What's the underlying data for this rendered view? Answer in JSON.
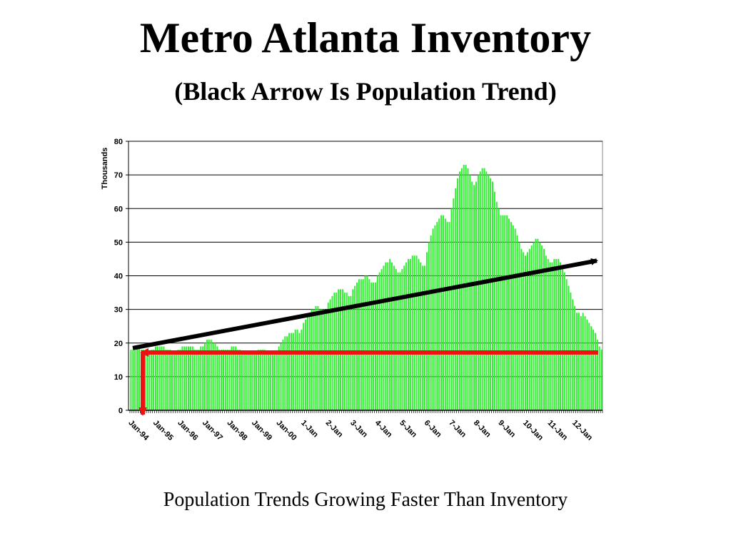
{
  "slide": {
    "title": "Metro Atlanta Inventory",
    "subtitle": "(Black Arrow Is Population Trend)",
    "caption": "Population Trends Growing Faster Than Inventory"
  },
  "colors": {
    "bars": "#33ee33",
    "population_arrow": "#000000",
    "inventory_arrow": "#ee1111",
    "plot_background": "#ffffff",
    "gridline": "#000000"
  },
  "chart_data": {
    "type": "bar",
    "title": "",
    "xlabel": "",
    "ylabel": "Thousands",
    "ylim": [
      0,
      80
    ],
    "yticks": [
      0,
      10,
      20,
      30,
      40,
      50,
      60,
      70,
      80
    ],
    "grid": true,
    "legend": "none",
    "x_tick_labels": [
      "Jan-94",
      "Jan-95",
      "Jan-96",
      "Jan-97",
      "Jan-98",
      "Jan-99",
      "Jan-00",
      "1-Jan",
      "2-Jan",
      "3-Jan",
      "4-Jan",
      "5-Jan",
      "6-Jan",
      "7-Jan",
      "8-Jan",
      "9-Jan",
      "10-Jan",
      "11-Jan",
      "12-Jan"
    ],
    "series": [
      {
        "type": "bar",
        "frequency": "monthly",
        "start": "Jan-94",
        "values_by_year": [
          {
            "year": "Jan-94",
            "values": [
              18,
              18,
              18,
              19,
              19,
              18,
              18,
              17,
              17,
              17,
              18,
              18
            ]
          },
          {
            "year": "Jan-95",
            "values": [
              19,
              19,
              19,
              19,
              19,
              18,
              18,
              18,
              17,
              17,
              17,
              18
            ]
          },
          {
            "year": "Jan-96",
            "values": [
              18,
              19,
              19,
              19,
              19,
              19,
              19,
              18,
              18,
              18,
              19,
              19
            ]
          },
          {
            "year": "Jan-97",
            "values": [
              20,
              21,
              21,
              21,
              20,
              20,
              19,
              18,
              18,
              18,
              18,
              18
            ]
          },
          {
            "year": "Jan-98",
            "values": [
              18,
              19,
              19,
              19,
              18,
              18,
              17,
              17,
              17,
              17,
              17,
              17
            ]
          },
          {
            "year": "Jan-99",
            "values": [
              17,
              17,
              18,
              18,
              18,
              18,
              17,
              17,
              17,
              17,
              17,
              17
            ]
          },
          {
            "year": "Jan-00",
            "values": [
              19,
              20,
              21,
              22,
              22,
              23,
              23,
              23,
              24,
              24,
              23,
              24
            ]
          },
          {
            "year": "1-Jan",
            "values": [
              26,
              27,
              28,
              29,
              30,
              30,
              31,
              31,
              30,
              30,
              30,
              30
            ]
          },
          {
            "year": "2-Jan",
            "values": [
              32,
              33,
              34,
              35,
              35,
              36,
              36,
              36,
              35,
              35,
              34,
              34
            ]
          },
          {
            "year": "3-Jan",
            "values": [
              36,
              37,
              38,
              39,
              39,
              39,
              40,
              40,
              39,
              38,
              38,
              38
            ]
          },
          {
            "year": "4-Jan",
            "values": [
              40,
              41,
              42,
              43,
              44,
              44,
              45,
              44,
              43,
              42,
              41,
              41
            ]
          },
          {
            "year": "5-Jan",
            "values": [
              42,
              43,
              44,
              45,
              45,
              46,
              46,
              46,
              45,
              44,
              43,
              43
            ]
          },
          {
            "year": "6-Jan",
            "values": [
              47,
              50,
              52,
              54,
              55,
              56,
              57,
              58,
              58,
              57,
              56,
              56
            ]
          },
          {
            "year": "7-Jan",
            "values": [
              60,
              63,
              66,
              69,
              71,
              72,
              73,
              73,
              72,
              70,
              68,
              67
            ]
          },
          {
            "year": "8-Jan",
            "values": [
              68,
              70,
              71,
              72,
              72,
              71,
              70,
              69,
              68,
              65,
              62,
              60
            ]
          },
          {
            "year": "9-Jan",
            "values": [
              58,
              58,
              58,
              58,
              57,
              56,
              55,
              54,
              52,
              50,
              48,
              47
            ]
          },
          {
            "year": "10-Jan",
            "values": [
              46,
              47,
              48,
              49,
              50,
              51,
              51,
              50,
              49,
              48,
              46,
              45
            ]
          },
          {
            "year": "11-Jan",
            "values": [
              44,
              44,
              45,
              45,
              45,
              44,
              43,
              41,
              39,
              37,
              35,
              33
            ]
          },
          {
            "year": "12-Jan",
            "values": [
              31,
              29,
              29,
              28,
              29,
              28,
              27,
              26,
              25,
              24,
              23,
              21
            ]
          },
          {
            "year": "13-Jan",
            "values": [
              19,
              18
            ]
          }
        ]
      }
    ],
    "annotations": [
      {
        "type": "arrow",
        "description": "population trend",
        "color": "#000000",
        "from": {
          "x": "Jan-94",
          "y": 18.5
        },
        "to": {
          "x": "12-Jan",
          "y": 44.5
        }
      },
      {
        "type": "arrow",
        "description": "inventory",
        "color": "#ee1111",
        "from": {
          "x": "12-Jan",
          "y": 17.2
        },
        "to": {
          "x": "Jan-94",
          "y": 17.2
        }
      },
      {
        "type": "arrow",
        "description": "down to zero",
        "color": "#ee1111",
        "from": {
          "x": "Jan-94",
          "y": 17.2
        },
        "to": {
          "x": "Jan-94",
          "y": 0
        }
      }
    ]
  }
}
